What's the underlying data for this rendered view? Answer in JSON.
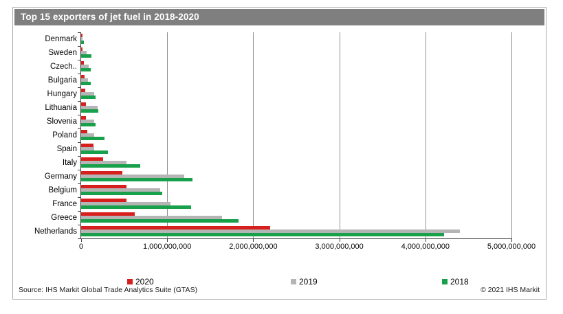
{
  "title": "Top 15 exporters of jet fuel in 2018-2020",
  "footer": {
    "source": "Source: IHS Markit Global Trade Analytics Suite (GTAS)",
    "copyright": "© 2021 IHS Markit"
  },
  "colors": {
    "title_bg": "#7f7f7f",
    "series_2020": "#d7201d",
    "series_2019": "#b5b5b5",
    "series_2018": "#18a04a",
    "grid": "#909090",
    "axis": "#404040",
    "frame_border": "#a9a9a9"
  },
  "chart_data": {
    "type": "bar",
    "orientation": "horizontal",
    "title": "Top 15 exporters of jet fuel in 2018-2020",
    "categories": [
      "Denmark",
      "Sweden",
      "Czech..",
      "Bulgaria",
      "Hungary",
      "Lithuania",
      "Slovenia",
      "Poland",
      "Spain",
      "Italy",
      "Germany",
      "Belgium",
      "France",
      "Greece",
      "Netherlands"
    ],
    "series": [
      {
        "name": "2020",
        "color": "#d7201d",
        "values": [
          15000000,
          8000000,
          30000000,
          40000000,
          45000000,
          55000000,
          55000000,
          75000000,
          140000000,
          255000000,
          480000000,
          530000000,
          530000000,
          620000000,
          2200000000
        ]
      },
      {
        "name": "2019",
        "color": "#b5b5b5",
        "values": [
          8000000,
          60000000,
          90000000,
          80000000,
          150000000,
          190000000,
          150000000,
          155000000,
          150000000,
          530000000,
          1200000000,
          920000000,
          1040000000,
          1640000000,
          4400000000
        ]
      },
      {
        "name": "2018",
        "color": "#18a04a",
        "values": [
          30000000,
          120000000,
          115000000,
          110000000,
          165000000,
          200000000,
          170000000,
          270000000,
          310000000,
          690000000,
          1290000000,
          945000000,
          1280000000,
          1830000000,
          4220000000
        ]
      }
    ],
    "xlim": [
      0,
      5000000000
    ],
    "x_ticks": [
      "0",
      "1,000,000,000",
      "2,000,000,000",
      "3,000,000,000",
      "4,000,000,000",
      "5,000,000,000"
    ],
    "grid": true,
    "legend_position": "bottom",
    "xlabel": "",
    "ylabel": ""
  }
}
